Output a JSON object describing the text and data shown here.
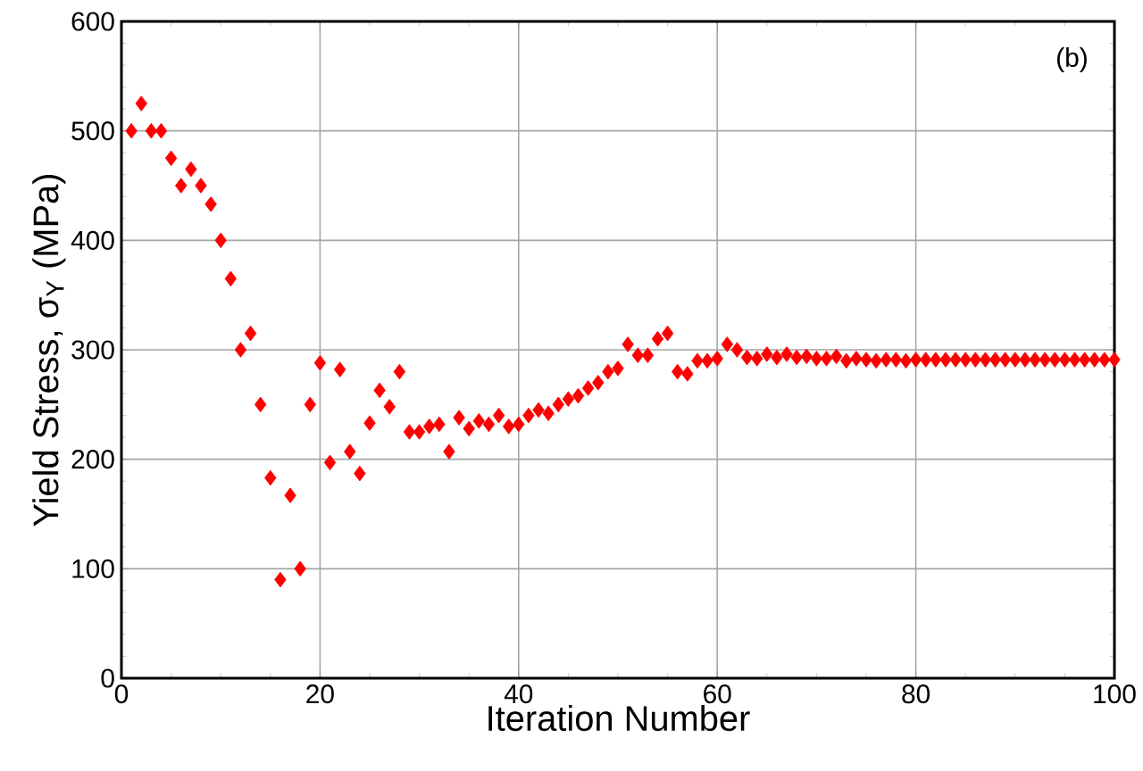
{
  "chart_data": {
    "type": "scatter",
    "xlabel": "Iteration Number",
    "ylabel": "Yield Stress, σ$_{Y}$ (MPa)",
    "annotations": [
      "(b)"
    ],
    "x": [
      1,
      2,
      3,
      4,
      5,
      6,
      7,
      8,
      9,
      10,
      11,
      12,
      13,
      14,
      15,
      16,
      17,
      18,
      19,
      20,
      21,
      22,
      23,
      24,
      25,
      26,
      27,
      28,
      29,
      30,
      31,
      32,
      33,
      34,
      35,
      36,
      37,
      38,
      39,
      40,
      41,
      42,
      43,
      44,
      45,
      46,
      47,
      48,
      49,
      50,
      51,
      52,
      53,
      54,
      55,
      56,
      57,
      58,
      59,
      60,
      61,
      62,
      63,
      64,
      65,
      66,
      67,
      68,
      69,
      70,
      71,
      72,
      73,
      74,
      75,
      76,
      77,
      78,
      79,
      80,
      81,
      82,
      83,
      84,
      85,
      86,
      87,
      88,
      89,
      90,
      91,
      92,
      93,
      94,
      95,
      96,
      97,
      98,
      99,
      100
    ],
    "series": [
      {
        "color": "#ff0000",
        "values": [
          500,
          525,
          500,
          500,
          475,
          450,
          465,
          450,
          433,
          400,
          365,
          300,
          315,
          250,
          183,
          90,
          167,
          100,
          250,
          288,
          197,
          282,
          207,
          187,
          233,
          263,
          248,
          280,
          225,
          225,
          230,
          232,
          207,
          238,
          228,
          235,
          232,
          240,
          230,
          232,
          240,
          245,
          242,
          250,
          255,
          258,
          265,
          270,
          280,
          283,
          305,
          295,
          295,
          310,
          315,
          280,
          278,
          290,
          290,
          292,
          305,
          300,
          293,
          292,
          296,
          293,
          296,
          293,
          294,
          292,
          292,
          294,
          290,
          292,
          291,
          290,
          291,
          291,
          290,
          291,
          291,
          291,
          291,
          291,
          291,
          291,
          291,
          291,
          291,
          291,
          291,
          291,
          291,
          291,
          291,
          291,
          291,
          291,
          291,
          291
        ]
      }
    ],
    "xlim": [
      0,
      100
    ],
    "ylim": [
      0,
      600
    ],
    "xticks": [
      0,
      20,
      40,
      60,
      80,
      100
    ],
    "yticks": [
      0,
      100,
      200,
      300,
      400,
      500,
      600
    ],
    "grid": true,
    "marker": "diamond"
  }
}
